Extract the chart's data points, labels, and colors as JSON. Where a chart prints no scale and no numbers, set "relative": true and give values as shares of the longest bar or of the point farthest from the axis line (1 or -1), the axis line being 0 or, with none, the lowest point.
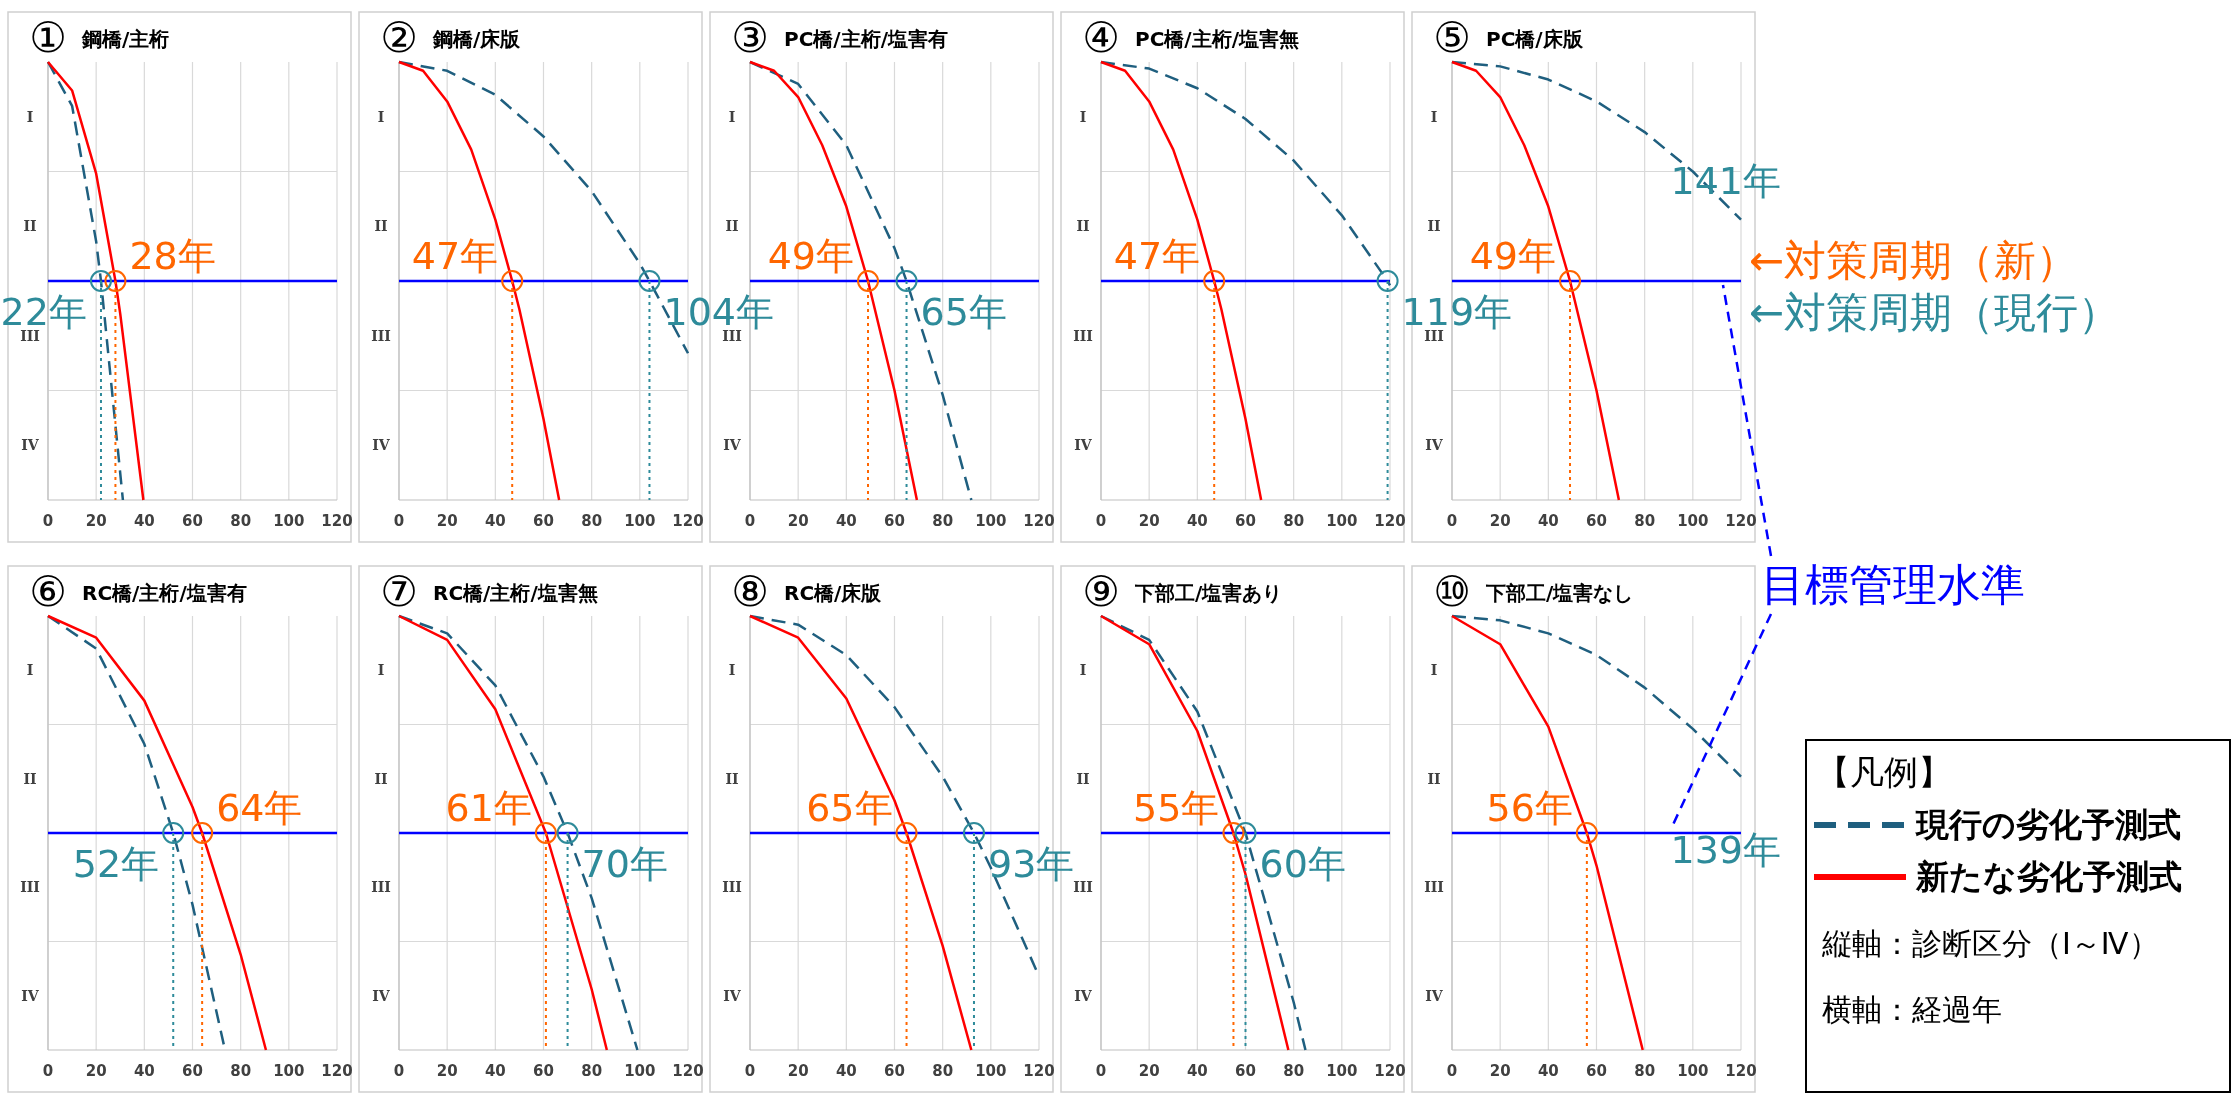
{
  "chart_data": [
    {
      "type": "line",
      "title": "①",
      "subtitle": "鋼橋/主桁",
      "relative": true,
      "xlim": [
        0,
        120
      ],
      "xticks": [
        0,
        20,
        40,
        60,
        80,
        100,
        120
      ],
      "y_categories": [
        "I",
        "II",
        "III",
        "IV"
      ],
      "grid": true,
      "legend": false,
      "marker": "none",
      "series": [
        {
          "color": "#1f5f7f",
          "line_style": "dashed",
          "x": [
            0,
            10,
            20,
            22,
            31.1
          ],
          "values": [
            1,
            0.9,
            0.59,
            0.5,
            0
          ]
        },
        {
          "color": "#ff0000",
          "line_style": "solid",
          "x": [
            0,
            10,
            20,
            28,
            30,
            39.6
          ],
          "values": [
            1,
            0.935,
            0.745,
            0.5,
            0.425,
            0
          ]
        }
      ],
      "ref_lines": [
        {
          "axis": "y",
          "value": 0.5,
          "color": "#0000ff",
          "line_style": "solid",
          "label": null
        },
        {
          "axis": "x",
          "value": 28,
          "color": "#ff6600",
          "line_style": "dotted",
          "label": "28年"
        },
        {
          "axis": "x",
          "value": 22,
          "color": "#2e8b9a",
          "line_style": "dotted",
          "label": "22年"
        }
      ]
    },
    {
      "type": "line",
      "title": "②",
      "subtitle": "鋼橋/床版",
      "relative": true,
      "xlim": [
        0,
        120
      ],
      "xticks": [
        0,
        20,
        40,
        60,
        80,
        100,
        120
      ],
      "y_categories": [
        "I",
        "II",
        "III",
        "IV"
      ],
      "grid": true,
      "legend": false,
      "marker": "none",
      "series": [
        {
          "color": "#1f5f7f",
          "line_style": "dashed",
          "x": [
            0,
            20,
            40,
            60,
            80,
            100,
            104,
            120
          ],
          "values": [
            1,
            0.98,
            0.925,
            0.83,
            0.705,
            0.54,
            0.5,
            0.335
          ]
        },
        {
          "color": "#ff0000",
          "line_style": "solid",
          "x": [
            0,
            10,
            20,
            30,
            40,
            47,
            50,
            60,
            66.5
          ],
          "values": [
            1,
            0.98,
            0.91,
            0.8,
            0.64,
            0.5,
            0.435,
            0.185,
            0
          ]
        }
      ],
      "ref_lines": [
        {
          "axis": "y",
          "value": 0.5,
          "color": "#0000ff",
          "line_style": "solid",
          "label": null
        },
        {
          "axis": "x",
          "value": 47,
          "color": "#ff6600",
          "line_style": "dotted",
          "label": "47年"
        },
        {
          "axis": "x",
          "value": 104,
          "color": "#2e8b9a",
          "line_style": "dotted",
          "label": "104年"
        }
      ]
    },
    {
      "type": "line",
      "title": "③",
      "subtitle": "PC橋/主桁/塩害有",
      "relative": true,
      "xlim": [
        0,
        120
      ],
      "xticks": [
        0,
        20,
        40,
        60,
        80,
        100,
        120
      ],
      "y_categories": [
        "I",
        "II",
        "III",
        "IV"
      ],
      "grid": true,
      "legend": false,
      "marker": "none",
      "series": [
        {
          "color": "#1f5f7f",
          "line_style": "dashed",
          "x": [
            0,
            20,
            40,
            60,
            65,
            80,
            91.9
          ],
          "values": [
            1,
            0.95,
            0.81,
            0.575,
            0.5,
            0.24,
            0
          ]
        },
        {
          "color": "#ff0000",
          "line_style": "solid",
          "x": [
            0,
            10,
            20,
            30,
            40,
            49,
            60,
            69.3
          ],
          "values": [
            1,
            0.98,
            0.92,
            0.81,
            0.67,
            0.5,
            0.25,
            0
          ]
        }
      ],
      "ref_lines": [
        {
          "axis": "y",
          "value": 0.5,
          "color": "#0000ff",
          "line_style": "solid",
          "label": null
        },
        {
          "axis": "x",
          "value": 49,
          "color": "#ff6600",
          "line_style": "dotted",
          "label": "49年"
        },
        {
          "axis": "x",
          "value": 65,
          "color": "#2e8b9a",
          "line_style": "dotted",
          "label": "65年"
        }
      ]
    },
    {
      "type": "line",
      "title": "④",
      "subtitle": "PC橋/主桁/塩害無",
      "relative": true,
      "xlim": [
        0,
        120
      ],
      "xticks": [
        0,
        20,
        40,
        60,
        80,
        100,
        120
      ],
      "y_categories": [
        "I",
        "II",
        "III",
        "IV"
      ],
      "grid": true,
      "legend": false,
      "marker": "none",
      "series": [
        {
          "color": "#1f5f7f",
          "line_style": "dashed",
          "x": [
            0,
            20,
            40,
            60,
            80,
            100,
            119,
            120
          ],
          "values": [
            1,
            0.985,
            0.94,
            0.87,
            0.775,
            0.65,
            0.5,
            0.49
          ]
        },
        {
          "color": "#ff0000",
          "line_style": "solid",
          "x": [
            0,
            10,
            20,
            30,
            40,
            47,
            50,
            60,
            66.5
          ],
          "values": [
            1,
            0.98,
            0.91,
            0.8,
            0.64,
            0.5,
            0.435,
            0.185,
            0
          ]
        }
      ],
      "ref_lines": [
        {
          "axis": "y",
          "value": 0.5,
          "color": "#0000ff",
          "line_style": "solid",
          "label": null
        },
        {
          "axis": "x",
          "value": 47,
          "color": "#ff6600",
          "line_style": "dotted",
          "label": "47年"
        },
        {
          "axis": "x",
          "value": 119,
          "color": "#2e8b9a",
          "line_style": "dotted",
          "label": "119年"
        }
      ]
    },
    {
      "type": "line",
      "title": "⑤",
      "subtitle": "PC橋/床版",
      "relative": true,
      "xlim": [
        0,
        120
      ],
      "xticks": [
        0,
        20,
        40,
        60,
        80,
        100,
        120
      ],
      "y_categories": [
        "I",
        "II",
        "III",
        "IV"
      ],
      "grid": true,
      "legend": false,
      "marker": "none",
      "series": [
        {
          "color": "#1f5f7f",
          "line_style": "dashed",
          "x": [
            0,
            20,
            40,
            60,
            80,
            100,
            120
          ],
          "values": [
            1,
            0.99,
            0.96,
            0.91,
            0.84,
            0.75,
            0.64
          ]
        },
        {
          "color": "#ff0000",
          "line_style": "solid",
          "x": [
            0,
            10,
            20,
            30,
            40,
            49,
            60,
            69.3
          ],
          "values": [
            1,
            0.98,
            0.92,
            0.81,
            0.67,
            0.5,
            0.25,
            0
          ]
        }
      ],
      "ref_lines": [
        {
          "axis": "y",
          "value": 0.5,
          "color": "#0000ff",
          "line_style": "solid",
          "label": "目標管理水準"
        },
        {
          "axis": "x",
          "value": 49,
          "color": "#ff6600",
          "line_style": "dotted",
          "label": "49年"
        }
      ],
      "annotations": [
        "141年",
        "←対策周期（新）",
        "←対策周期（現行）"
      ]
    },
    {
      "type": "line",
      "title": "⑥",
      "subtitle": "RC橋/主桁/塩害有",
      "relative": true,
      "xlim": [
        0,
        120
      ],
      "xticks": [
        0,
        20,
        40,
        60,
        80,
        100,
        120
      ],
      "y_categories": [
        "I",
        "II",
        "III",
        "IV"
      ],
      "grid": true,
      "legend": false,
      "marker": "none",
      "series": [
        {
          "color": "#1f5f7f",
          "line_style": "dashed",
          "x": [
            0,
            20,
            40,
            52,
            60,
            73.5
          ],
          "values": [
            1,
            0.925,
            0.705,
            0.5,
            0.335,
            0
          ]
        },
        {
          "color": "#ff0000",
          "line_style": "solid",
          "x": [
            0,
            20,
            40,
            60,
            64,
            80,
            90.5
          ],
          "values": [
            1,
            0.95,
            0.805,
            0.56,
            0.5,
            0.22,
            0
          ]
        }
      ],
      "ref_lines": [
        {
          "axis": "y",
          "value": 0.5,
          "color": "#0000ff",
          "line_style": "solid",
          "label": null
        },
        {
          "axis": "x",
          "value": 64,
          "color": "#ff6600",
          "line_style": "dotted",
          "label": "64年"
        },
        {
          "axis": "x",
          "value": 52,
          "color": "#2e8b9a",
          "line_style": "dotted",
          "label": "52年"
        }
      ]
    },
    {
      "type": "line",
      "title": "⑦",
      "subtitle": "RC橋/主桁/塩害無",
      "relative": true,
      "xlim": [
        0,
        120
      ],
      "xticks": [
        0,
        20,
        40,
        60,
        80,
        100,
        120
      ],
      "y_categories": [
        "I",
        "II",
        "III",
        "IV"
      ],
      "grid": true,
      "legend": false,
      "marker": "none",
      "series": [
        {
          "color": "#1f5f7f",
          "line_style": "dashed",
          "x": [
            0,
            20,
            40,
            60,
            70,
            80,
            99
          ],
          "values": [
            1,
            0.96,
            0.84,
            0.63,
            0.5,
            0.35,
            0
          ]
        },
        {
          "color": "#ff0000",
          "line_style": "solid",
          "x": [
            0,
            20,
            40,
            61,
            80,
            86.3
          ],
          "values": [
            1,
            0.945,
            0.785,
            0.5,
            0.14,
            0
          ]
        }
      ],
      "ref_lines": [
        {
          "axis": "y",
          "value": 0.5,
          "color": "#0000ff",
          "line_style": "solid",
          "label": null
        },
        {
          "axis": "x",
          "value": 61,
          "color": "#ff6600",
          "line_style": "dotted",
          "label": "61年"
        },
        {
          "axis": "x",
          "value": 70,
          "color": "#2e8b9a",
          "line_style": "dotted",
          "label": "70年"
        }
      ]
    },
    {
      "type": "line",
      "title": "⑧",
      "subtitle": "RC橋/床版",
      "relative": true,
      "xlim": [
        0,
        120
      ],
      "xticks": [
        0,
        20,
        40,
        60,
        80,
        100,
        120
      ],
      "y_categories": [
        "I",
        "II",
        "III",
        "IV"
      ],
      "grid": true,
      "legend": false,
      "marker": "none",
      "series": [
        {
          "color": "#1f5f7f",
          "line_style": "dashed",
          "x": [
            0,
            20,
            40,
            60,
            80,
            93,
            100,
            120
          ],
          "values": [
            1,
            0.98,
            0.91,
            0.79,
            0.63,
            0.5,
            0.42,
            0.17
          ]
        },
        {
          "color": "#ff0000",
          "line_style": "solid",
          "x": [
            0,
            20,
            40,
            60,
            65,
            80,
            91.9
          ],
          "values": [
            1,
            0.95,
            0.81,
            0.575,
            0.5,
            0.24,
            0
          ]
        }
      ],
      "ref_lines": [
        {
          "axis": "y",
          "value": 0.5,
          "color": "#0000ff",
          "line_style": "solid",
          "label": null
        },
        {
          "axis": "x",
          "value": 65,
          "color": "#ff6600",
          "line_style": "dotted",
          "label": "65年"
        },
        {
          "axis": "x",
          "value": 93,
          "color": "#2e8b9a",
          "line_style": "dotted",
          "label": "93年"
        }
      ]
    },
    {
      "type": "line",
      "title": "⑨",
      "subtitle": "下部工/塩害あり",
      "relative": true,
      "xlim": [
        0,
        120
      ],
      "xticks": [
        0,
        20,
        40,
        60,
        80,
        100,
        120
      ],
      "y_categories": [
        "I",
        "II",
        "III",
        "IV"
      ],
      "grid": true,
      "legend": false,
      "marker": "none",
      "series": [
        {
          "color": "#1f5f7f",
          "line_style": "dashed",
          "x": [
            0,
            20,
            40,
            60,
            80,
            84.9
          ],
          "values": [
            1,
            0.945,
            0.78,
            0.5,
            0.11,
            0
          ]
        },
        {
          "color": "#ff0000",
          "line_style": "solid",
          "x": [
            0,
            20,
            40,
            55,
            60,
            77.8
          ],
          "values": [
            1,
            0.935,
            0.735,
            0.5,
            0.405,
            0
          ]
        }
      ],
      "ref_lines": [
        {
          "axis": "y",
          "value": 0.5,
          "color": "#0000ff",
          "line_style": "solid",
          "label": null
        },
        {
          "axis": "x",
          "value": 55,
          "color": "#ff6600",
          "line_style": "dotted",
          "label": "55年"
        },
        {
          "axis": "x",
          "value": 60,
          "color": "#2e8b9a",
          "line_style": "dotted",
          "label": "60年"
        }
      ]
    },
    {
      "type": "line",
      "title": "⑩",
      "subtitle": "下部工/塩害なし",
      "relative": true,
      "xlim": [
        0,
        120
      ],
      "xticks": [
        0,
        20,
        40,
        60,
        80,
        100,
        120
      ],
      "y_categories": [
        "I",
        "II",
        "III",
        "IV"
      ],
      "grid": true,
      "legend": "right",
      "legend_title": "【凡例】",
      "marker": "none",
      "series": [
        {
          "name": "現行の劣化予測式",
          "color": "#1f5f7f",
          "line_style": "dashed",
          "x": [
            0,
            20,
            40,
            60,
            80,
            100,
            120
          ],
          "values": [
            1,
            0.99,
            0.96,
            0.91,
            0.835,
            0.74,
            0.63
          ]
        },
        {
          "name": "新たな劣化予測式",
          "color": "#ff0000",
          "line_style": "solid",
          "x": [
            0,
            20,
            40,
            56,
            60,
            79.2
          ],
          "values": [
            1,
            0.935,
            0.745,
            0.5,
            0.425,
            0
          ]
        }
      ],
      "ref_lines": [
        {
          "axis": "y",
          "value": 0.5,
          "color": "#0000ff",
          "line_style": "solid",
          "label": null
        },
        {
          "axis": "x",
          "value": 56,
          "color": "#ff6600",
          "line_style": "dotted",
          "label": "56年"
        }
      ],
      "annotations": [
        "139年",
        "縦軸：診断区分（Ⅰ～Ⅳ）",
        "横軸：経過年"
      ]
    }
  ]
}
